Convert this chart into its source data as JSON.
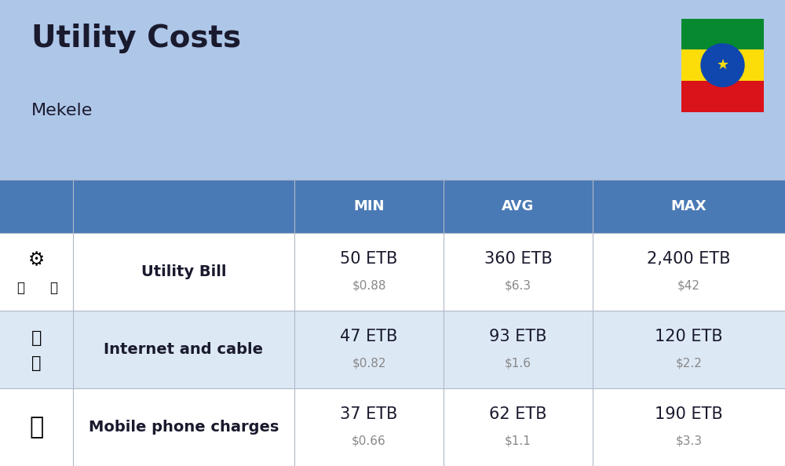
{
  "title": "Utility Costs",
  "subtitle": "Mekele",
  "background_color": "#aec6e8",
  "header_bg_color": "#4a7ab5",
  "header_text_color": "#ffffff",
  "row_colors": [
    "#ffffff",
    "#dde8f5",
    "#ffffff"
  ],
  "col_headers": [
    "MIN",
    "AVG",
    "MAX"
  ],
  "rows": [
    {
      "label": "Utility Bill",
      "icon": "utility",
      "min_etb": "50 ETB",
      "min_usd": "$0.88",
      "avg_etb": "360 ETB",
      "avg_usd": "$6.3",
      "max_etb": "2,400 ETB",
      "max_usd": "$42"
    },
    {
      "label": "Internet and cable",
      "icon": "internet",
      "min_etb": "47 ETB",
      "min_usd": "$0.82",
      "avg_etb": "93 ETB",
      "avg_usd": "$1.6",
      "max_etb": "120 ETB",
      "max_usd": "$2.2"
    },
    {
      "label": "Mobile phone charges",
      "icon": "mobile",
      "min_etb": "37 ETB",
      "min_usd": "$0.66",
      "avg_etb": "62 ETB",
      "avg_usd": "$1.1",
      "max_etb": "190 ETB",
      "max_usd": "$3.3"
    }
  ],
  "etb_fontsize": 15,
  "usd_fontsize": 11,
  "label_fontsize": 14,
  "header_fontsize": 13,
  "title_fontsize": 28,
  "subtitle_fontsize": 16,
  "usd_color": "#888888",
  "text_color": "#1a1a2e",
  "flag_green": "#078930",
  "flag_yellow": "#FCDD09",
  "flag_red": "#DA121A",
  "flag_blue": "#0F47AF"
}
